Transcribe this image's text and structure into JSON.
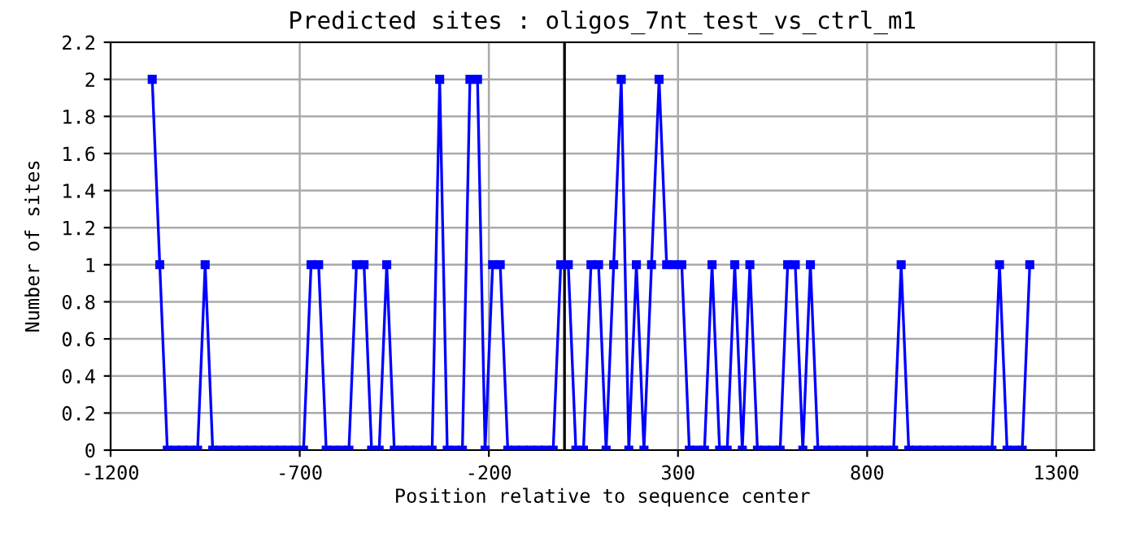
{
  "chart_data": {
    "type": "line",
    "title": "Predicted sites : oligos_7nt_test_vs_ctrl_m1",
    "xlabel": "Position relative to sequence center",
    "ylabel": "Number of sites",
    "x": [
      -1090,
      -1070,
      -1050,
      -1030,
      -1010,
      -990,
      -970,
      -950,
      -930,
      -910,
      -890,
      -870,
      -850,
      -830,
      -810,
      -790,
      -770,
      -750,
      -730,
      -710,
      -690,
      -670,
      -650,
      -630,
      -610,
      -590,
      -570,
      -550,
      -530,
      -510,
      -490,
      -470,
      -450,
      -430,
      -410,
      -390,
      -370,
      -350,
      -330,
      -310,
      -290,
      -270,
      -250,
      -230,
      -210,
      -190,
      -170,
      -150,
      -130,
      -110,
      -90,
      -70,
      -50,
      -30,
      -10,
      10,
      30,
      50,
      70,
      90,
      110,
      130,
      150,
      170,
      190,
      210,
      230,
      250,
      270,
      290,
      310,
      330,
      350,
      370,
      390,
      410,
      430,
      450,
      470,
      490,
      510,
      530,
      550,
      570,
      590,
      610,
      630,
      650,
      670,
      690,
      710,
      730,
      750,
      770,
      790,
      810,
      830,
      850,
      870,
      890,
      910,
      930,
      950,
      970,
      990,
      1010,
      1030,
      1050,
      1070,
      1090,
      1110,
      1130,
      1150,
      1170,
      1190,
      1210,
      1230
    ],
    "series": [
      {
        "color": "#0000ff",
        "values": [
          2,
          1,
          0,
          0,
          0,
          0,
          0,
          1,
          0,
          0,
          0,
          0,
          0,
          0,
          0,
          0,
          0,
          0,
          0,
          0,
          0,
          1,
          1,
          0,
          0,
          0,
          0,
          1,
          1,
          0,
          0,
          1,
          0,
          0,
          0,
          0,
          0,
          0,
          2,
          0,
          0,
          0,
          2,
          2,
          0,
          1,
          1,
          0,
          0,
          0,
          0,
          0,
          0,
          0,
          1,
          1,
          0,
          0,
          1,
          1,
          0,
          1,
          2,
          0,
          1,
          0,
          1,
          2,
          1,
          1,
          1,
          0,
          0,
          0,
          1,
          0,
          0,
          1,
          0,
          1,
          0,
          0,
          0,
          0,
          1,
          1,
          0,
          1,
          0,
          0,
          0,
          0,
          0,
          0,
          0,
          0,
          0,
          0,
          0,
          1,
          0,
          0,
          0,
          0,
          0,
          0,
          0,
          0,
          0,
          0,
          0,
          0,
          1,
          0,
          0,
          0,
          1
        ]
      }
    ],
    "xlim": [
      -1200,
      1400
    ],
    "xticks": [
      -1200,
      -700,
      -200,
      300,
      800,
      1300
    ],
    "ylim": [
      0,
      2.2
    ],
    "yticks": [
      0,
      0.2,
      0.4,
      0.6,
      0.8,
      1,
      1.2,
      1.4,
      1.6,
      1.8,
      2,
      2.2
    ],
    "ref_lines": [
      {
        "axis": "x",
        "value": 0,
        "color": "#000000"
      }
    ],
    "grid": true,
    "marker": "square",
    "line_style": "solid"
  }
}
